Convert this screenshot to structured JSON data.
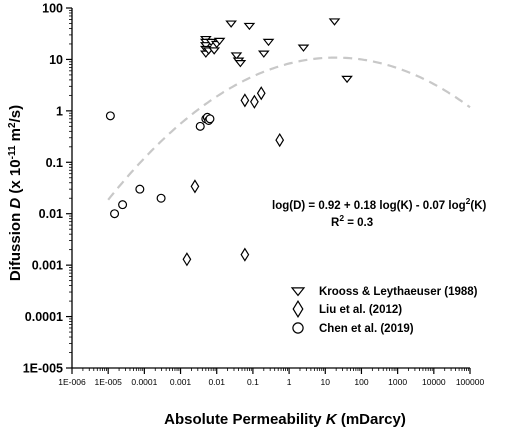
{
  "chart_data": {
    "type": "scatter",
    "xlabel": "Absolute Permeability K (mDarcy)",
    "xlabel_parts": {
      "pre": "Absolute Permeability ",
      "var": "K",
      "post": " (mDarcy)"
    },
    "ylabel": "Difussion D (x 10-11 m2/s)",
    "ylabel_parts": {
      "pre": "Difussion ",
      "var": "D",
      "mid": " (x 10",
      "exp": "-11",
      "unit": " m",
      "unit_exp": "2",
      "post": "/s)"
    },
    "xscale": "log",
    "yscale": "log",
    "xlim": [
      1e-06,
      100000
    ],
    "ylim": [
      1e-05,
      100
    ],
    "x_tick_values": [
      1e-06,
      1e-05,
      0.0001,
      0.001,
      0.01,
      0.1,
      1,
      10,
      100,
      1000,
      10000,
      100000
    ],
    "x_tick_labels": [
      "1E-006",
      "1E-005",
      "0.0001",
      "0.001",
      "0.01",
      "0.1",
      "1",
      "10",
      "100",
      "1000",
      "10000",
      "100000"
    ],
    "y_tick_values": [
      100,
      10,
      1,
      0.1,
      0.01,
      0.001,
      0.0001,
      1e-05
    ],
    "y_tick_labels": [
      "100",
      "10",
      "1",
      "0.1",
      "0.01",
      "0.001",
      "0.0001",
      "1E-005"
    ],
    "grid": false,
    "legend_position": "bottom-right",
    "series": [
      {
        "name": "Krooss & Leythaeuser (1988)",
        "marker": "triangle-down",
        "points": [
          [
            0.005,
            25
          ],
          [
            0.005,
            22
          ],
          [
            0.005,
            19
          ],
          [
            0.005,
            16
          ],
          [
            0.005,
            13
          ],
          [
            0.006,
            15
          ],
          [
            0.007,
            22
          ],
          [
            0.0085,
            15
          ],
          [
            0.01,
            20
          ],
          [
            0.012,
            23
          ],
          [
            0.025,
            50
          ],
          [
            0.035,
            12
          ],
          [
            0.04,
            9.5
          ],
          [
            0.045,
            8.5
          ],
          [
            0.08,
            45
          ],
          [
            0.2,
            13
          ],
          [
            0.27,
            22
          ],
          [
            2.5,
            17
          ],
          [
            18,
            55
          ],
          [
            40,
            4.2
          ]
        ]
      },
      {
        "name": "Liu et al. (2012)",
        "marker": "diamond",
        "points": [
          [
            0.0015,
            0.0013
          ],
          [
            0.0025,
            0.034
          ],
          [
            0.06,
            0.0016
          ],
          [
            0.06,
            1.6
          ],
          [
            0.11,
            1.5
          ],
          [
            0.17,
            2.2
          ],
          [
            0.55,
            0.27
          ]
        ]
      },
      {
        "name": "Chen et al. (2019)",
        "marker": "circle",
        "points": [
          [
            1.15e-05,
            0.8
          ],
          [
            1.5e-05,
            0.01
          ],
          [
            2.5e-05,
            0.015
          ],
          [
            7.5e-05,
            0.03
          ],
          [
            0.00029,
            0.02
          ],
          [
            0.0035,
            0.5
          ],
          [
            0.005,
            0.7
          ],
          [
            0.0055,
            0.75
          ],
          [
            0.006,
            0.65
          ],
          [
            0.0065,
            0.7
          ]
        ]
      }
    ],
    "fit": {
      "style": "dashed",
      "color": "#c8c8c8",
      "coefficients": [
        0.92,
        0.18,
        -0.07
      ],
      "x_range": [
        1e-05,
        100000
      ]
    },
    "annotation": {
      "equation_pre": "log(D) =  0.92 + 0.18 log(K) - 0.07 log",
      "equation_exp": "2",
      "equation_post": "(K)",
      "r2_pre": "R",
      "r2_exp": "2",
      "r2_post": " = 0.3"
    }
  }
}
